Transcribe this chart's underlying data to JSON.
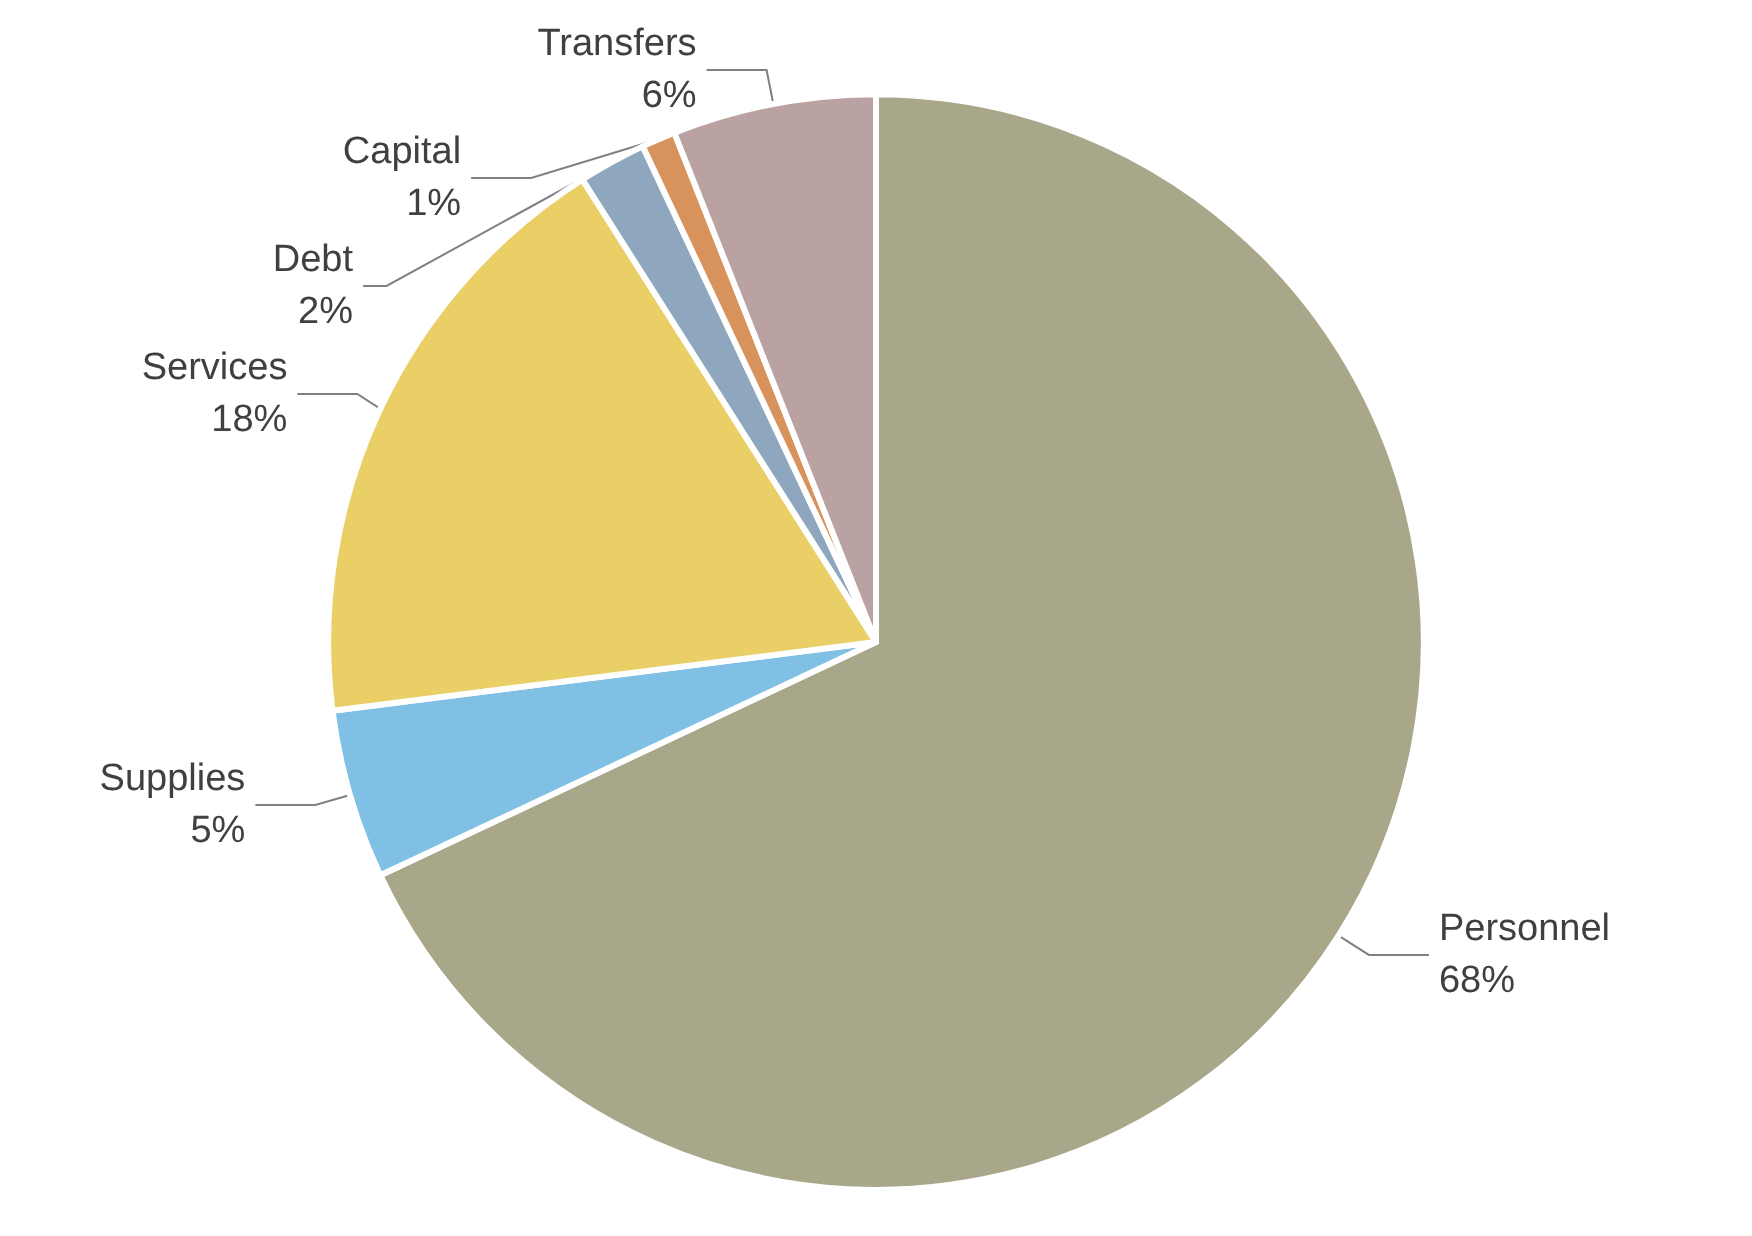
{
  "chart_data": {
    "type": "pie",
    "categories": [
      "Personnel",
      "Supplies",
      "Services",
      "Debt",
      "Capital",
      "Transfers"
    ],
    "values": [
      68,
      5,
      18,
      2,
      1,
      6
    ],
    "colors": [
      "#a9a78a",
      "#7fc0e4",
      "#e9cf66",
      "#8ea7bf",
      "#d8925c",
      "#baa2a2"
    ],
    "value_labels": [
      "68%",
      "5%",
      "18%",
      "2%",
      "1%",
      "6%"
    ]
  }
}
